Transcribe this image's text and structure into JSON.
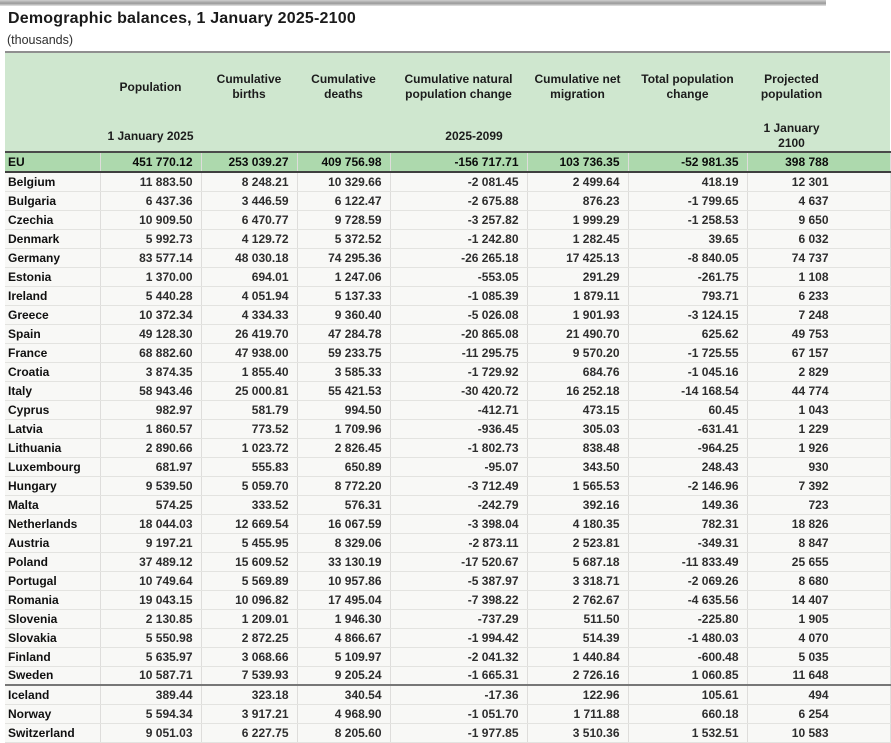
{
  "page": {
    "title": "Demographic balances, 1 January 2025-2100",
    "unit_label": "(thousands)"
  },
  "colors": {
    "header_bg": "#cfe7cf",
    "eu_row_bg": "#add9ad"
  },
  "table": {
    "headers": {
      "population": "Population",
      "cum_births": "Cumulative births",
      "cum_deaths": "Cumulative deaths",
      "cum_natural": "Cumulative natural population change",
      "cum_migration": "Cumulative net migration",
      "total_change": "Total population change",
      "projected": "Projected population"
    },
    "subheaders": {
      "population": "1 January 2025",
      "mid": "2025-2099",
      "projected": "1 January 2100"
    },
    "eu_row": {
      "name": "EU",
      "values": [
        "451 770.12",
        "253 039.27",
        "409 756.98",
        "-156 717.71",
        "103 736.35",
        "-52 981.35",
        "398 788"
      ]
    },
    "separator_after": "Sweden",
    "rows": [
      {
        "name": "Belgium",
        "values": [
          "11 883.50",
          "8 248.21",
          "10 329.66",
          "-2 081.45",
          "2 499.64",
          "418.19",
          "12 301"
        ]
      },
      {
        "name": "Bulgaria",
        "values": [
          "6 437.36",
          "3 446.59",
          "6 122.47",
          "-2 675.88",
          "876.23",
          "-1 799.65",
          "4 637"
        ]
      },
      {
        "name": "Czechia",
        "values": [
          "10 909.50",
          "6 470.77",
          "9 728.59",
          "-3 257.82",
          "1 999.29",
          "-1 258.53",
          "9 650"
        ]
      },
      {
        "name": "Denmark",
        "values": [
          "5 992.73",
          "4 129.72",
          "5 372.52",
          "-1 242.80",
          "1 282.45",
          "39.65",
          "6 032"
        ]
      },
      {
        "name": "Germany",
        "values": [
          "83 577.14",
          "48 030.18",
          "74 295.36",
          "-26 265.18",
          "17 425.13",
          "-8 840.05",
          "74 737"
        ]
      },
      {
        "name": "Estonia",
        "values": [
          "1 370.00",
          "694.01",
          "1 247.06",
          "-553.05",
          "291.29",
          "-261.75",
          "1 108"
        ]
      },
      {
        "name": "Ireland",
        "values": [
          "5 440.28",
          "4 051.94",
          "5 137.33",
          "-1 085.39",
          "1 879.11",
          "793.71",
          "6 233"
        ]
      },
      {
        "name": "Greece",
        "values": [
          "10 372.34",
          "4 334.33",
          "9 360.40",
          "-5 026.08",
          "1 901.93",
          "-3 124.15",
          "7 248"
        ]
      },
      {
        "name": "Spain",
        "values": [
          "49 128.30",
          "26 419.70",
          "47 284.78",
          "-20 865.08",
          "21 490.70",
          "625.62",
          "49 753"
        ]
      },
      {
        "name": "France",
        "values": [
          "68 882.60",
          "47 938.00",
          "59 233.75",
          "-11 295.75",
          "9 570.20",
          "-1 725.55",
          "67 157"
        ]
      },
      {
        "name": "Croatia",
        "values": [
          "3 874.35",
          "1 855.40",
          "3 585.33",
          "-1 729.92",
          "684.76",
          "-1 045.16",
          "2 829"
        ]
      },
      {
        "name": "Italy",
        "values": [
          "58 943.46",
          "25 000.81",
          "55 421.53",
          "-30 420.72",
          "16 252.18",
          "-14 168.54",
          "44 774"
        ]
      },
      {
        "name": "Cyprus",
        "values": [
          "982.97",
          "581.79",
          "994.50",
          "-412.71",
          "473.15",
          "60.45",
          "1 043"
        ]
      },
      {
        "name": "Latvia",
        "values": [
          "1 860.57",
          "773.52",
          "1 709.96",
          "-936.45",
          "305.03",
          "-631.41",
          "1 229"
        ]
      },
      {
        "name": "Lithuania",
        "values": [
          "2 890.66",
          "1 023.72",
          "2 826.45",
          "-1 802.73",
          "838.48",
          "-964.25",
          "1 926"
        ]
      },
      {
        "name": "Luxembourg",
        "values": [
          "681.97",
          "555.83",
          "650.89",
          "-95.07",
          "343.50",
          "248.43",
          "930"
        ]
      },
      {
        "name": "Hungary",
        "values": [
          "9 539.50",
          "5 059.70",
          "8 772.20",
          "-3 712.49",
          "1 565.53",
          "-2 146.96",
          "7 392"
        ]
      },
      {
        "name": "Malta",
        "values": [
          "574.25",
          "333.52",
          "576.31",
          "-242.79",
          "392.16",
          "149.36",
          "723"
        ]
      },
      {
        "name": "Netherlands",
        "values": [
          "18 044.03",
          "12 669.54",
          "16 067.59",
          "-3 398.04",
          "4 180.35",
          "782.31",
          "18 826"
        ]
      },
      {
        "name": "Austria",
        "values": [
          "9 197.21",
          "5 455.95",
          "8 329.06",
          "-2 873.11",
          "2 523.81",
          "-349.31",
          "8 847"
        ]
      },
      {
        "name": "Poland",
        "values": [
          "37 489.12",
          "15 609.52",
          "33 130.19",
          "-17 520.67",
          "5 687.18",
          "-11 833.49",
          "25 655"
        ]
      },
      {
        "name": "Portugal",
        "values": [
          "10 749.64",
          "5 569.89",
          "10 957.86",
          "-5 387.97",
          "3 318.71",
          "-2 069.26",
          "8 680"
        ]
      },
      {
        "name": "Romania",
        "values": [
          "19 043.15",
          "10 096.82",
          "17 495.04",
          "-7 398.22",
          "2 762.67",
          "-4 635.56",
          "14 407"
        ]
      },
      {
        "name": "Slovenia",
        "values": [
          "2 130.85",
          "1 209.01",
          "1 946.30",
          "-737.29",
          "511.50",
          "-225.80",
          "1 905"
        ]
      },
      {
        "name": "Slovakia",
        "values": [
          "5 550.98",
          "2 872.25",
          "4 866.67",
          "-1 994.42",
          "514.39",
          "-1 480.03",
          "4 070"
        ]
      },
      {
        "name": "Finland",
        "values": [
          "5 635.97",
          "3 068.66",
          "5 109.97",
          "-2 041.32",
          "1 440.84",
          "-600.48",
          "5 035"
        ]
      },
      {
        "name": "Sweden",
        "values": [
          "10 587.71",
          "7 539.93",
          "9 205.24",
          "-1 665.31",
          "2 726.16",
          "1 060.85",
          "11 648"
        ]
      },
      {
        "name": "Iceland",
        "values": [
          "389.44",
          "323.18",
          "340.54",
          "-17.36",
          "122.96",
          "105.61",
          "494"
        ]
      },
      {
        "name": "Norway",
        "values": [
          "5 594.34",
          "3 917.21",
          "4 968.90",
          "-1 051.70",
          "1 711.88",
          "660.18",
          "6 254"
        ]
      },
      {
        "name": "Switzerland",
        "values": [
          "9 051.03",
          "6 227.75",
          "8 205.60",
          "-1 977.85",
          "3 510.36",
          "1 532.51",
          "10 583"
        ]
      }
    ]
  }
}
